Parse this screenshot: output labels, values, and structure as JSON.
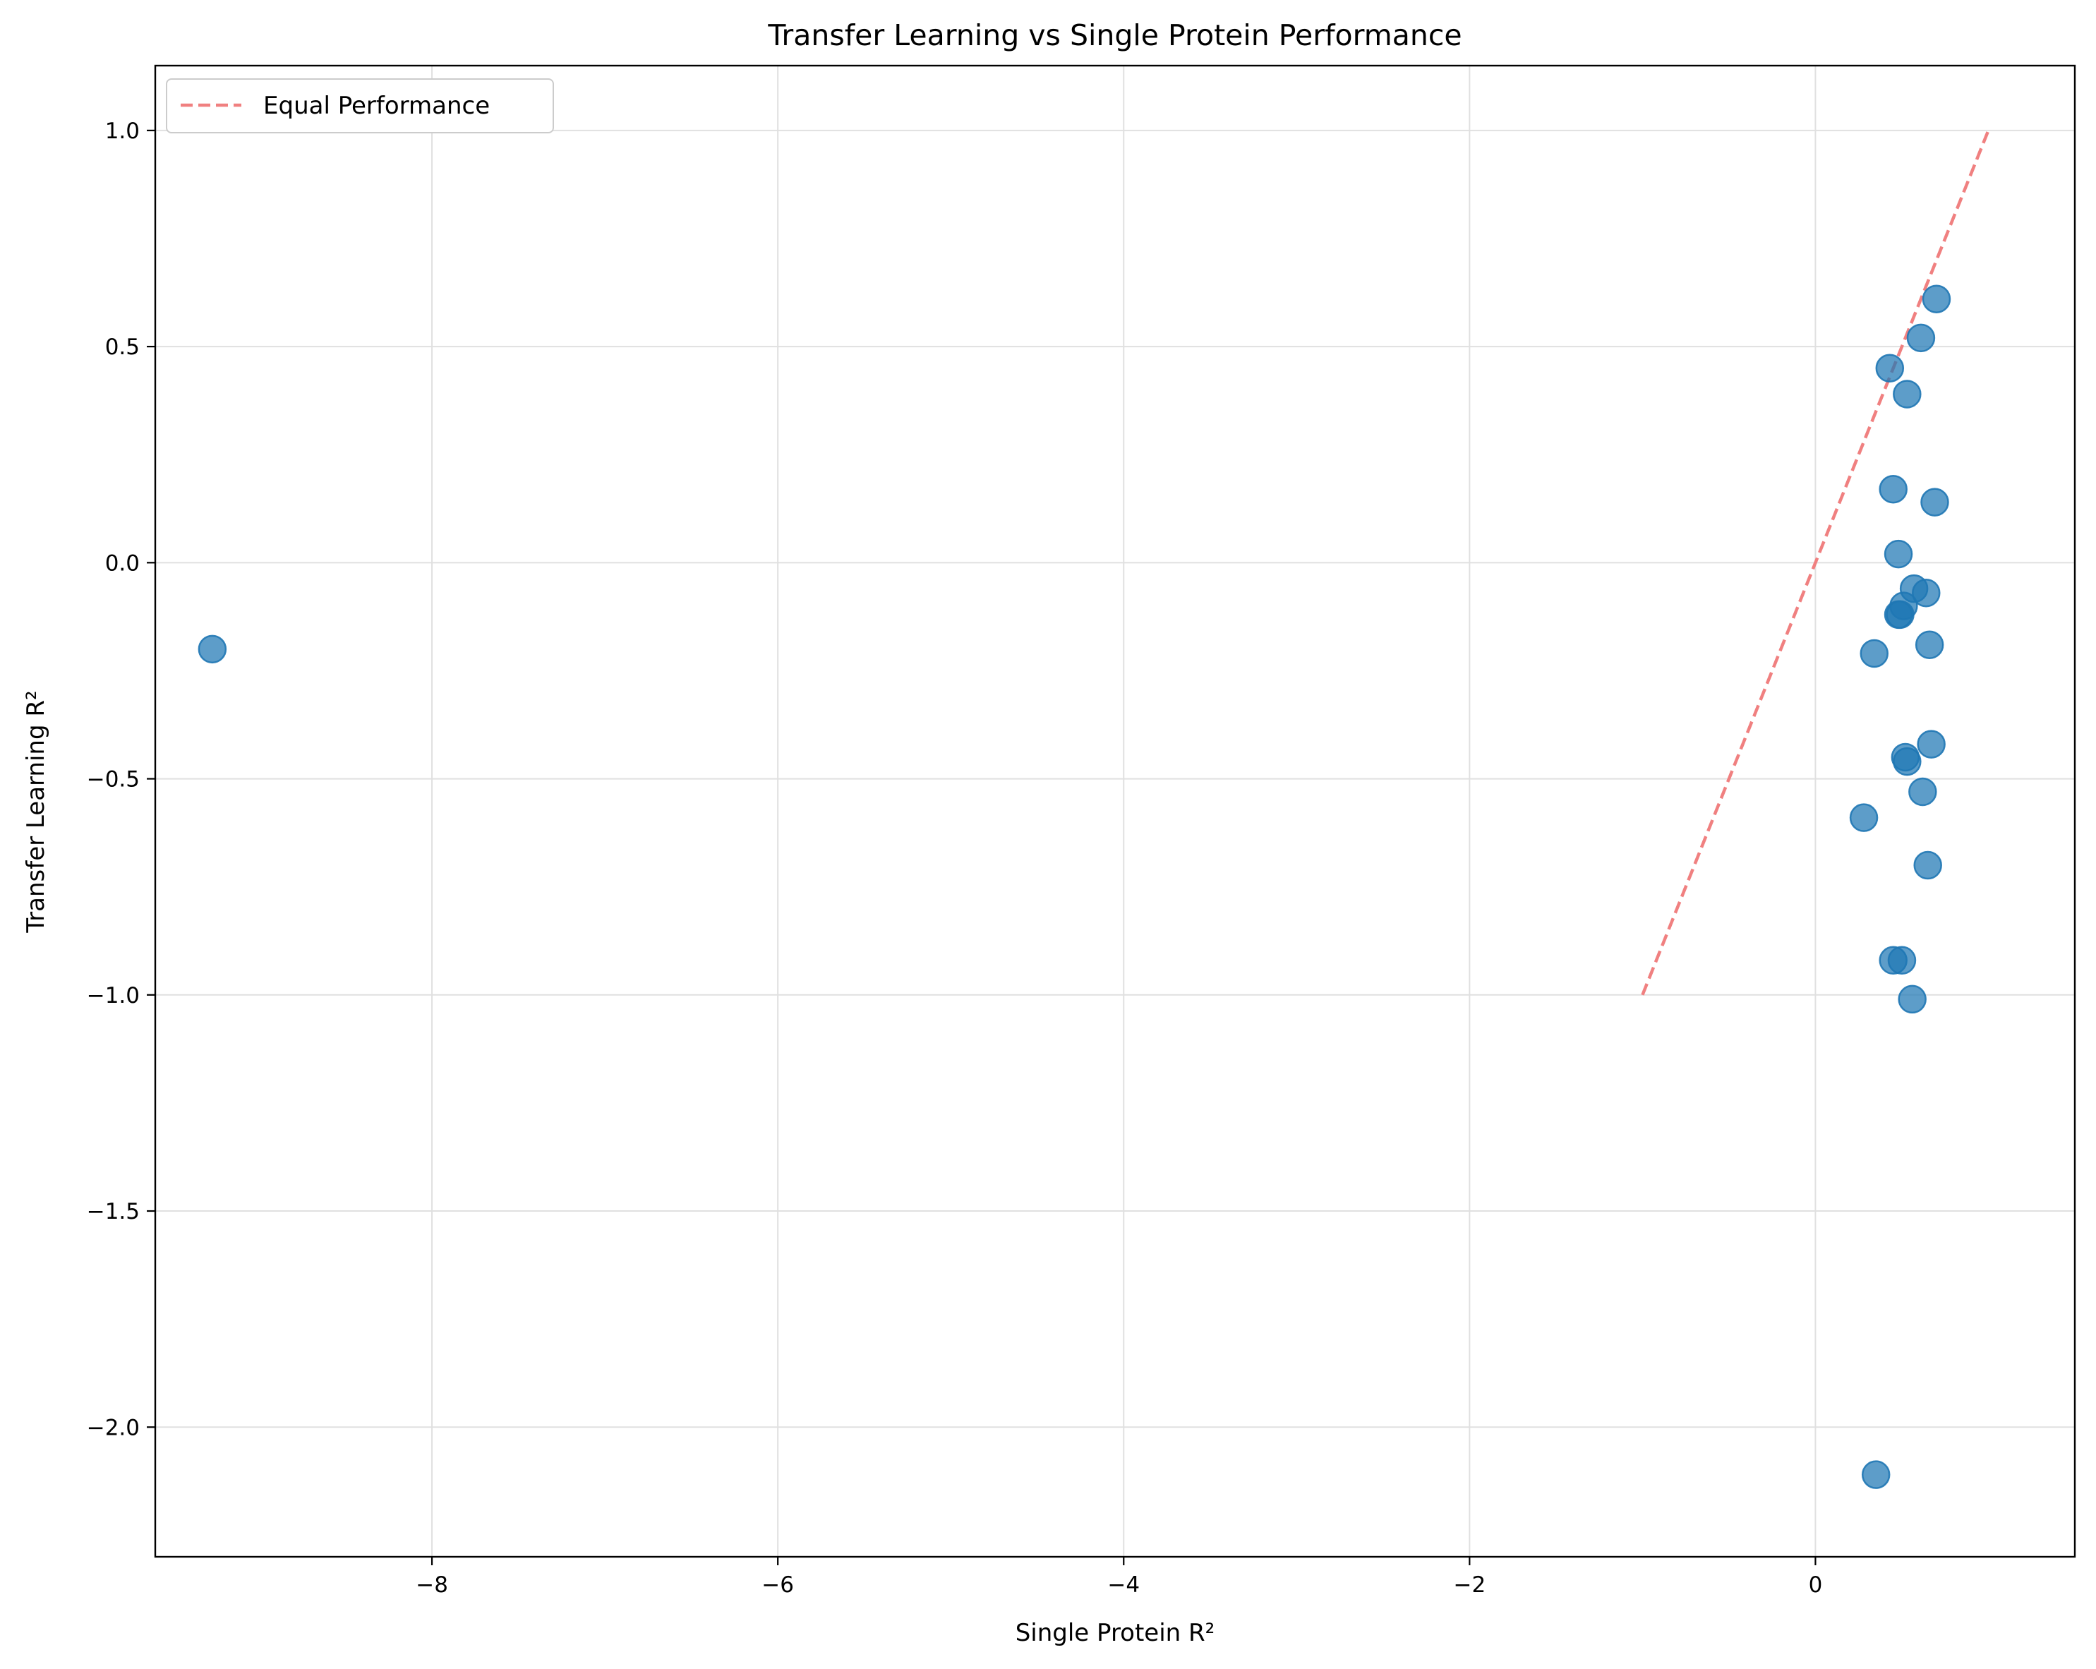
{
  "chart_data": {
    "type": "scatter",
    "title": "Transfer Learning vs Single Protein Performance",
    "xlabel": "Single Protein R²",
    "ylabel": "Transfer Learning R²",
    "xlim": [
      -9.6,
      1.5
    ],
    "ylim": [
      -2.3,
      1.15
    ],
    "x_ticks": [
      -8,
      -6,
      -4,
      -2,
      0
    ],
    "x_tick_labels": [
      "−8",
      "−6",
      "−4",
      "−2",
      "0"
    ],
    "y_ticks": [
      -2.0,
      -1.5,
      -1.0,
      -0.5,
      0.0,
      0.5,
      1.0
    ],
    "y_tick_labels": [
      "−2.0",
      "−1.5",
      "−1.0",
      "−0.5",
      "0.0",
      "0.5",
      "1.0"
    ],
    "grid": true,
    "legend_position": "top-left",
    "colors": {
      "points": "#1f77b4",
      "reference_line": "#f08080",
      "grid": "#e0e0e0",
      "axes": "#000000"
    },
    "reference_line": {
      "name": "Equal Performance",
      "x": [
        -1.0,
        1.0
      ],
      "y": [
        -1.0,
        1.0
      ],
      "style": "dashed"
    },
    "series": [
      {
        "points": [
          {
            "x": -9.27,
            "y": -0.2
          },
          {
            "x": 0.7,
            "y": 0.61
          },
          {
            "x": 0.61,
            "y": 0.52
          },
          {
            "x": 0.43,
            "y": 0.45
          },
          {
            "x": 0.53,
            "y": 0.39
          },
          {
            "x": 0.45,
            "y": 0.17
          },
          {
            "x": 0.69,
            "y": 0.14
          },
          {
            "x": 0.48,
            "y": 0.02
          },
          {
            "x": 0.57,
            "y": -0.06
          },
          {
            "x": 0.64,
            "y": -0.07
          },
          {
            "x": 0.51,
            "y": -0.1
          },
          {
            "x": 0.48,
            "y": -0.12
          },
          {
            "x": 0.49,
            "y": -0.12
          },
          {
            "x": 0.34,
            "y": -0.21
          },
          {
            "x": 0.66,
            "y": -0.19
          },
          {
            "x": 0.67,
            "y": -0.42
          },
          {
            "x": 0.52,
            "y": -0.45
          },
          {
            "x": 0.53,
            "y": -0.46
          },
          {
            "x": 0.62,
            "y": -0.53
          },
          {
            "x": 0.28,
            "y": -0.59
          },
          {
            "x": 0.65,
            "y": -0.7
          },
          {
            "x": 0.45,
            "y": -0.92
          },
          {
            "x": 0.5,
            "y": -0.92
          },
          {
            "x": 0.56,
            "y": -1.01
          },
          {
            "x": 0.35,
            "y": -2.11
          }
        ]
      }
    ]
  }
}
